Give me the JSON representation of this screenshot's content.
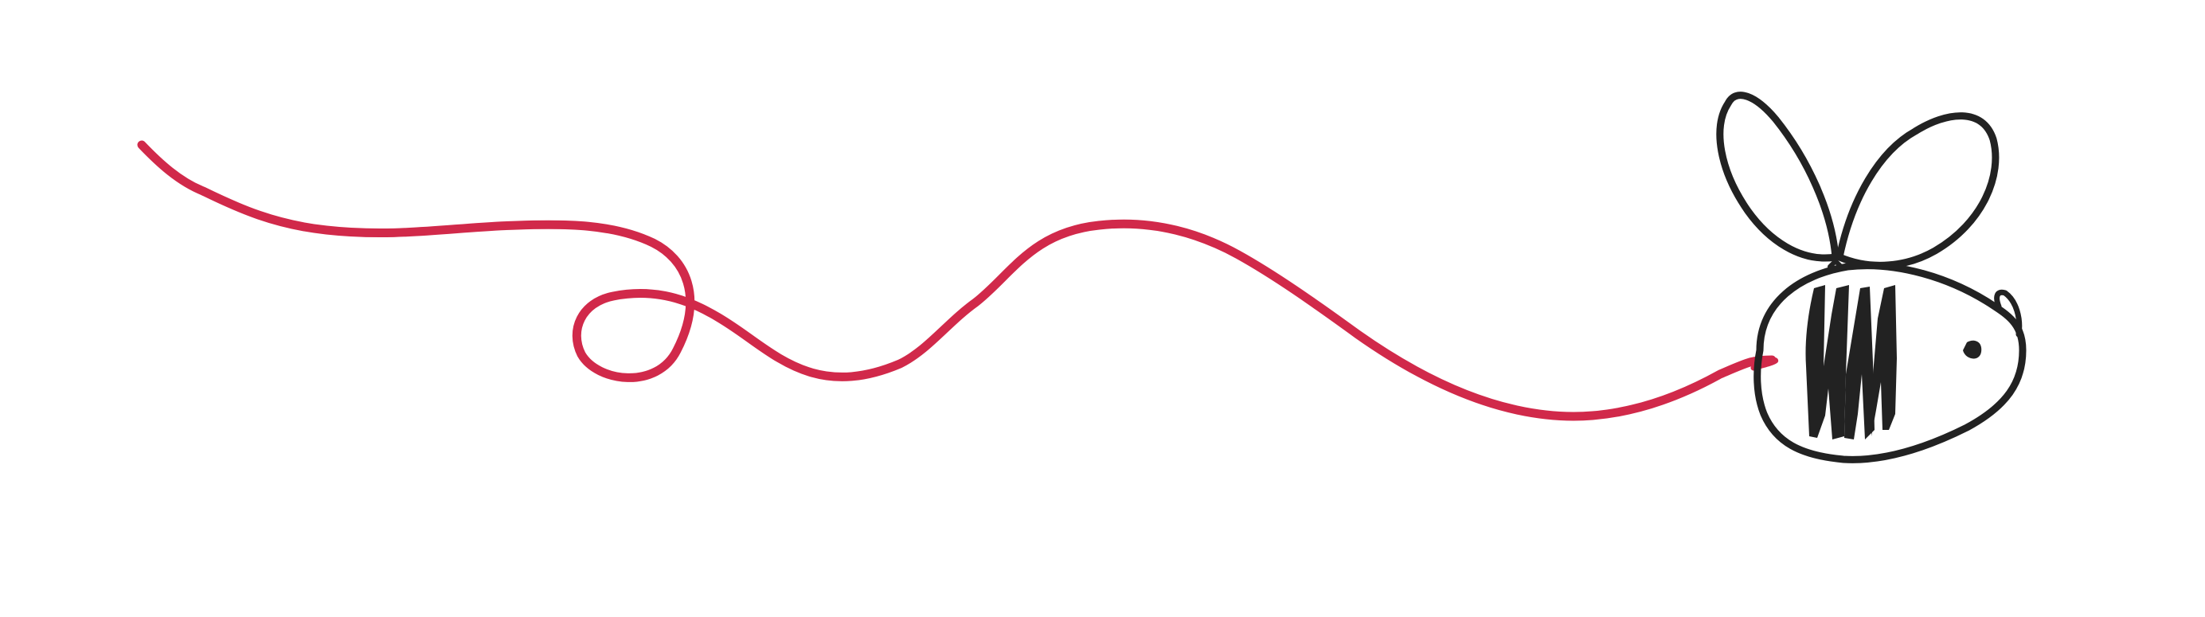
{
  "illustration": {
    "subject": "bee-icon",
    "trail": "flight-path-trail",
    "colors": {
      "trail": "#d1294a",
      "outline": "#222222",
      "fill": "#ffffff"
    }
  }
}
